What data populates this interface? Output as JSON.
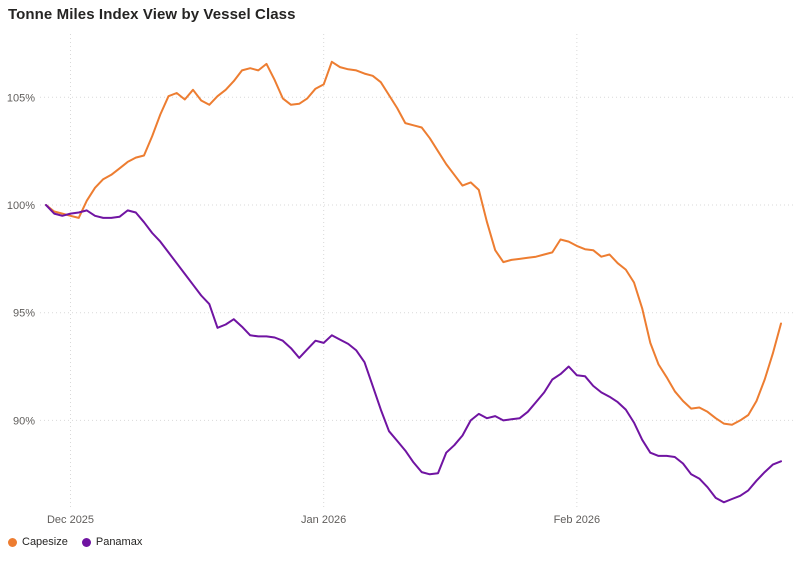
{
  "title": "Tonne Miles Index View by Vessel Class",
  "legend": {
    "items": [
      {
        "label": "Capesize",
        "color": "#ED7D31"
      },
      {
        "label": "Panamax",
        "color": "#7014A2"
      }
    ],
    "position": "bottom-left"
  },
  "chart_data": {
    "type": "line",
    "title": "Tonne Miles Index View by Vessel Class",
    "xlabel": "",
    "ylabel": "",
    "grid": "dotted",
    "legend_position": "bottom-left",
    "y_axis": {
      "unit": "%",
      "ticks": [
        105,
        100,
        95,
        90
      ],
      "tick_labels": [
        "105%",
        "100%",
        "95%",
        "90%"
      ],
      "visible_range_approx": [
        86,
        107.7
      ]
    },
    "x_axis": {
      "frequency": "daily",
      "n_points": 91,
      "tick_labels": [
        "Dec 2025",
        "Jan 2026",
        "Feb 2026"
      ],
      "tick_indices": [
        3,
        34,
        65
      ]
    },
    "series": [
      {
        "name": "Capesize",
        "color": "#ED7D31",
        "values": [
          100.0,
          99.7,
          99.6,
          99.5,
          99.4,
          100.2,
          100.8,
          101.2,
          101.4,
          101.7,
          102.0,
          102.2,
          102.3,
          103.2,
          104.2,
          105.05,
          105.2,
          104.9,
          105.35,
          104.85,
          104.65,
          105.05,
          105.35,
          105.75,
          106.25,
          106.35,
          106.25,
          106.55,
          105.8,
          104.95,
          104.65,
          104.7,
          104.95,
          105.4,
          105.6,
          106.65,
          106.4,
          106.3,
          106.25,
          106.1,
          106.0,
          105.7,
          105.1,
          104.5,
          103.8,
          103.7,
          103.6,
          103.1,
          102.5,
          101.9,
          101.4,
          100.9,
          101.05,
          100.7,
          99.2,
          97.9,
          97.35,
          97.45,
          97.5,
          97.55,
          97.6,
          97.7,
          97.8,
          98.4,
          98.3,
          98.1,
          97.95,
          97.9,
          97.6,
          97.7,
          97.3,
          97.0,
          96.4,
          95.2,
          93.6,
          92.6,
          92.0,
          91.35,
          90.9,
          90.55,
          90.6,
          90.4,
          90.1,
          89.85,
          89.8,
          90.0,
          90.25,
          90.9,
          91.9,
          93.1,
          94.5
        ]
      },
      {
        "name": "Panamax",
        "color": "#7014A2",
        "values": [
          100.0,
          99.6,
          99.5,
          99.6,
          99.65,
          99.75,
          99.5,
          99.4,
          99.4,
          99.45,
          99.75,
          99.65,
          99.2,
          98.7,
          98.3,
          97.8,
          97.3,
          96.8,
          96.3,
          95.8,
          95.4,
          94.3,
          94.45,
          94.7,
          94.35,
          93.95,
          93.9,
          93.9,
          93.85,
          93.7,
          93.35,
          92.9,
          93.3,
          93.7,
          93.6,
          93.95,
          93.75,
          93.55,
          93.25,
          92.7,
          91.6,
          90.5,
          89.5,
          89.05,
          88.6,
          88.05,
          87.6,
          87.5,
          87.55,
          88.5,
          88.85,
          89.3,
          90.0,
          90.3,
          90.1,
          90.2,
          90.0,
          90.05,
          90.1,
          90.4,
          90.85,
          91.3,
          91.9,
          92.15,
          92.5,
          92.1,
          92.05,
          91.6,
          91.3,
          91.1,
          90.85,
          90.5,
          89.9,
          89.1,
          88.5,
          88.35,
          88.35,
          88.3,
          88.0,
          87.5,
          87.3,
          86.9,
          86.4,
          86.2,
          86.35,
          86.5,
          86.75,
          87.2,
          87.6,
          87.95,
          88.1
        ]
      }
    ]
  }
}
